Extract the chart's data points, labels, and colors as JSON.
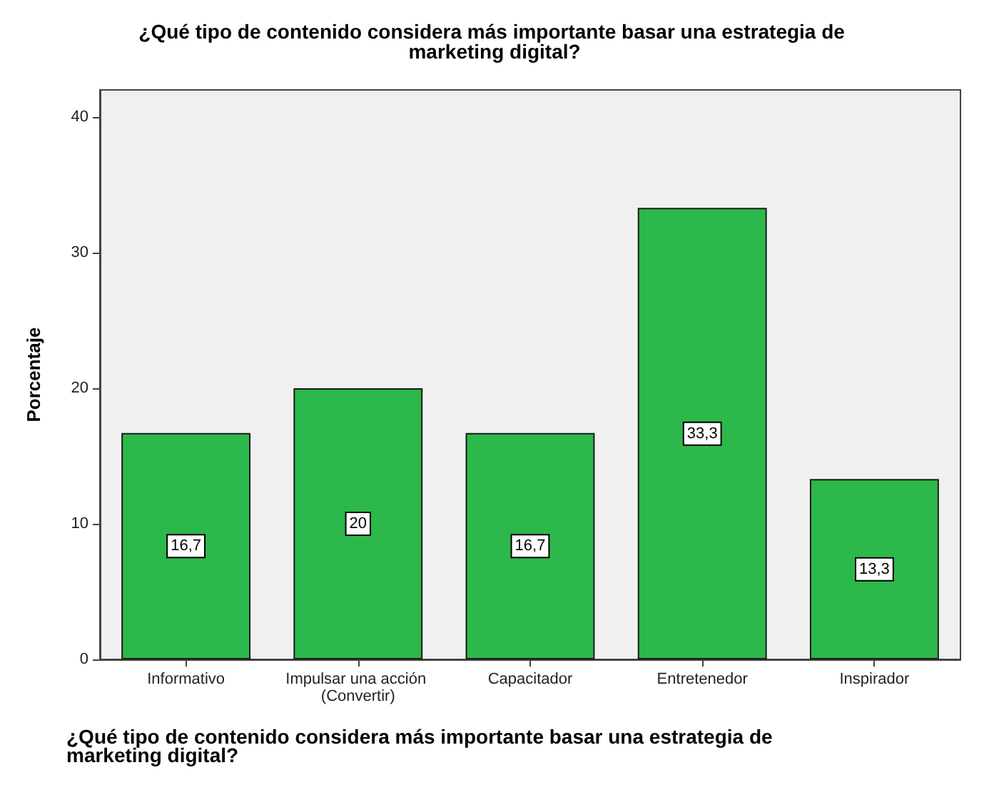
{
  "chart_data": {
    "type": "bar",
    "title": "¿Qué tipo de contenido considera más importante basar una estrategia de marketing digital?",
    "xlabel": "¿Qué tipo de contenido considera más importante basar una estrategia de marketing digital?",
    "ylabel": "Porcentaje",
    "categories": [
      "Informativo",
      "Impulsar una acción (Convertir)",
      "Capacitador",
      "Entretenedor",
      "Inspirador"
    ],
    "values": [
      16.7,
      20,
      16.7,
      33.3,
      13.3
    ],
    "value_labels": [
      "16,7",
      "20",
      "16,7",
      "33,3",
      "13,3"
    ],
    "color": "#2db84b",
    "ylim": [
      0,
      42
    ],
    "yticks": [
      0,
      10,
      20,
      30,
      40
    ],
    "grid": false
  }
}
